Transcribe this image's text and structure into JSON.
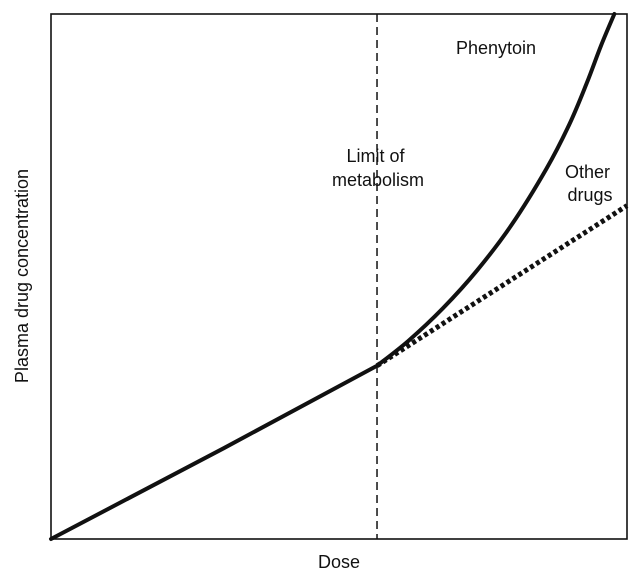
{
  "chart_data": {
    "type": "line",
    "title": "",
    "xlabel": "Dose",
    "ylabel": "Plasma drug concentration",
    "xlim": [
      0,
      100
    ],
    "ylim": [
      0,
      100
    ],
    "grid": false,
    "legend": "none",
    "series": [
      {
        "name": "Phenytoin",
        "style": "solid",
        "x": [
          0,
          30,
          56.6,
          62,
          68,
          74,
          80,
          86,
          90,
          93,
          95.5,
          97.8
        ],
        "y": [
          0,
          17.3,
          33.0,
          37.7,
          43.9,
          51.2,
          59.9,
          70.5,
          79.0,
          86.8,
          94.0,
          100
        ]
      },
      {
        "name": "Other drugs",
        "style": "dotted",
        "x": [
          56.6,
          100
        ],
        "y": [
          33.0,
          63.5
        ]
      }
    ],
    "annotations": [
      {
        "type": "vline",
        "x": 56.6,
        "style": "dashed",
        "text": [
          "Limit of",
          "metabolism"
        ]
      }
    ]
  }
}
